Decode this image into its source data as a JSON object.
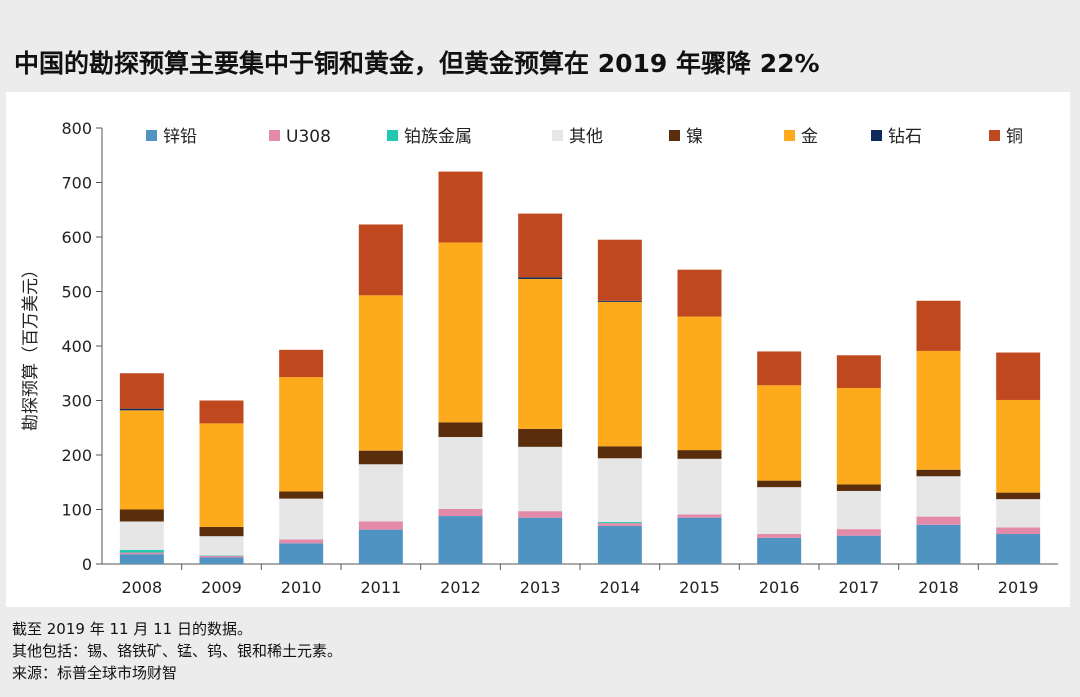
{
  "title": "中国的勘探预算主要集中于铜和黄金，但黄金预算在 2019 年骤降 22%",
  "notes": [
    "截至 2019 年 11 月 11 日的数据。",
    "其他包括：锡、铬铁矿、锰、钨、银和稀土元素。",
    "来源：标普全球市场财智"
  ],
  "chart_data": {
    "type": "bar",
    "stacked": true,
    "ylabel": "勘探预算（百万美元）",
    "ylim": [
      0,
      800
    ],
    "yticks": [
      0,
      100,
      200,
      300,
      400,
      500,
      600,
      700,
      800
    ],
    "grid": false,
    "legend_position": "top",
    "categories": [
      "2008",
      "2009",
      "2010",
      "2011",
      "2012",
      "2013",
      "2014",
      "2015",
      "2016",
      "2017",
      "2018",
      "2019"
    ],
    "series": [
      {
        "name": "锌铅",
        "color": "#4f93c2",
        "values": [
          18,
          12,
          38,
          63,
          88,
          85,
          70,
          85,
          48,
          52,
          72,
          55
        ]
      },
      {
        "name": "U308",
        "color": "#e38aa8",
        "values": [
          3,
          3,
          7,
          15,
          13,
          12,
          5,
          6,
          7,
          12,
          15,
          12
        ]
      },
      {
        "name": "铂族金属",
        "color": "#22c9b0",
        "values": [
          5,
          1,
          0,
          0,
          0,
          0,
          2,
          0,
          0,
          0,
          0,
          0
        ]
      },
      {
        "name": "其他",
        "color": "#e6e6e6",
        "values": [
          52,
          35,
          75,
          105,
          132,
          118,
          117,
          102,
          86,
          70,
          74,
          52
        ]
      },
      {
        "name": "镍",
        "color": "#5a2e0c",
        "values": [
          22,
          17,
          13,
          25,
          27,
          33,
          22,
          16,
          12,
          12,
          12,
          12
        ]
      },
      {
        "name": "金",
        "color": "#fdab1c",
        "values": [
          182,
          190,
          210,
          285,
          330,
          275,
          265,
          245,
          175,
          177,
          218,
          170
        ]
      },
      {
        "name": "钻石",
        "color": "#0e2a5c",
        "values": [
          3,
          0,
          0,
          0,
          0,
          3,
          2,
          0,
          0,
          0,
          0,
          0
        ]
      },
      {
        "name": "铜",
        "color": "#c0481e",
        "values": [
          65,
          42,
          50,
          130,
          130,
          117,
          112,
          86,
          62,
          60,
          92,
          87
        ]
      }
    ]
  }
}
